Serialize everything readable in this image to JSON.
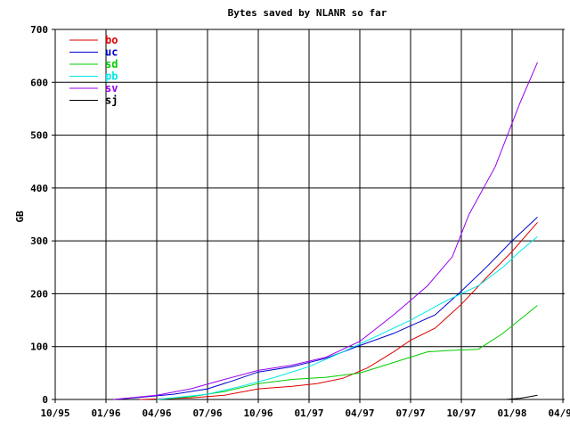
{
  "chart_data": {
    "type": "line",
    "title": "Bytes saved by NLANR so far",
    "xlabel": "",
    "ylabel": "GB",
    "ylim": [
      0,
      700
    ],
    "xlim": [
      "1995-10",
      "1998-04"
    ],
    "yticks": [
      0,
      100,
      200,
      300,
      400,
      500,
      600,
      700
    ],
    "xticks": [
      "10/95",
      "01/96",
      "04/96",
      "07/96",
      "10/96",
      "01/97",
      "04/97",
      "07/97",
      "10/97",
      "01/98",
      "04/98"
    ],
    "grid": true,
    "legend_position": "top-left",
    "series": [
      {
        "name": "bo",
        "color": "#dd0000",
        "points": [
          [
            "1996-03-01",
            0
          ],
          [
            "1996-06-01",
            3
          ],
          [
            "1996-08-01",
            8
          ],
          [
            "1996-10-01",
            20
          ],
          [
            "1996-12-01",
            25
          ],
          [
            "1997-01-15",
            30
          ],
          [
            "1997-03-01",
            40
          ],
          [
            "1997-04-15",
            60
          ],
          [
            "1997-06-01",
            90
          ],
          [
            "1997-07-01",
            112
          ],
          [
            "1997-08-15",
            135
          ],
          [
            "1997-10-01",
            180
          ],
          [
            "1997-11-15",
            230
          ],
          [
            "1998-01-01",
            280
          ],
          [
            "1998-02-15",
            335
          ]
        ]
      },
      {
        "name": "uc",
        "color": "#0000cc",
        "points": [
          [
            "1996-01-15",
            0
          ],
          [
            "1996-03-01",
            4
          ],
          [
            "1996-05-01",
            10
          ],
          [
            "1996-07-01",
            20
          ],
          [
            "1996-08-15",
            35
          ],
          [
            "1996-10-01",
            52
          ],
          [
            "1996-12-01",
            62
          ],
          [
            "1997-02-01",
            78
          ],
          [
            "1997-04-01",
            102
          ],
          [
            "1997-06-01",
            125
          ],
          [
            "1997-08-15",
            160
          ],
          [
            "1997-10-01",
            205
          ],
          [
            "1997-11-15",
            250
          ],
          [
            "1998-01-01",
            300
          ],
          [
            "1998-02-15",
            345
          ]
        ]
      },
      {
        "name": "sd",
        "color": "#00cc00",
        "points": [
          [
            "1996-04-01",
            0
          ],
          [
            "1996-06-01",
            5
          ],
          [
            "1996-08-01",
            15
          ],
          [
            "1996-10-01",
            30
          ],
          [
            "1996-12-01",
            38
          ],
          [
            "1997-02-01",
            42
          ],
          [
            "1997-04-01",
            50
          ],
          [
            "1997-06-01",
            70
          ],
          [
            "1997-08-01",
            90
          ],
          [
            "1997-09-15",
            93
          ],
          [
            "1997-11-01",
            95
          ],
          [
            "1997-12-15",
            125
          ],
          [
            "1998-02-15",
            178
          ]
        ]
      },
      {
        "name": "pb",
        "color": "#00e8e8",
        "points": [
          [
            "1996-04-01",
            0
          ],
          [
            "1996-07-01",
            10
          ],
          [
            "1996-09-01",
            25
          ],
          [
            "1996-11-01",
            42
          ],
          [
            "1997-01-01",
            62
          ],
          [
            "1997-03-01",
            90
          ],
          [
            "1997-05-01",
            120
          ],
          [
            "1997-07-01",
            150
          ],
          [
            "1997-09-01",
            185
          ],
          [
            "1997-11-01",
            215
          ],
          [
            "1997-12-15",
            250
          ],
          [
            "1998-01-15",
            280
          ],
          [
            "1998-02-15",
            308
          ]
        ]
      },
      {
        "name": "sv",
        "color": "#9900ee",
        "points": [
          [
            "1996-01-15",
            0
          ],
          [
            "1996-04-01",
            8
          ],
          [
            "1996-06-01",
            20
          ],
          [
            "1996-08-01",
            38
          ],
          [
            "1996-10-01",
            55
          ],
          [
            "1996-12-01",
            65
          ],
          [
            "1997-02-01",
            80
          ],
          [
            "1997-04-01",
            110
          ],
          [
            "1997-06-01",
            160
          ],
          [
            "1997-08-01",
            215
          ],
          [
            "1997-09-15",
            270
          ],
          [
            "1997-10-15",
            350
          ],
          [
            "1997-12-01",
            440
          ],
          [
            "1998-01-15",
            560
          ],
          [
            "1998-02-15",
            638
          ]
        ]
      },
      {
        "name": "sj",
        "color": "#000000",
        "points": [
          [
            "1997-12-20",
            0
          ],
          [
            "1998-01-15",
            2
          ],
          [
            "1998-02-01",
            5
          ],
          [
            "1998-02-15",
            8
          ]
        ]
      }
    ]
  },
  "colors": {
    "background": "#ffffff",
    "axis": "#000000",
    "grid": "#000000"
  }
}
